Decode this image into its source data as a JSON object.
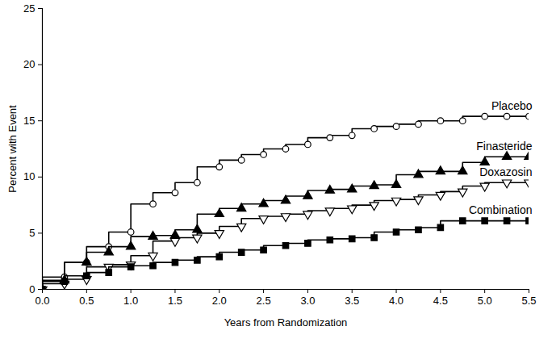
{
  "chart_data": {
    "type": "line",
    "x_label": "Years from Randomization",
    "y_label": "Percent with Event",
    "x": [
      0,
      0.25,
      0.5,
      0.75,
      1.0,
      1.25,
      1.5,
      1.75,
      2.0,
      2.25,
      2.5,
      2.75,
      3.0,
      3.25,
      3.5,
      3.75,
      4.0,
      4.25,
      4.5,
      4.75,
      5.0,
      5.25,
      5.5
    ],
    "series": [
      {
        "name": "Placebo",
        "color": "#000000",
        "marker": "circle-open",
        "line_style": "step",
        "values": [
          0,
          1.1,
          2.4,
          3.8,
          5.1,
          7.6,
          8.6,
          9.5,
          10.9,
          11.5,
          12.0,
          12.5,
          12.9,
          13.5,
          13.7,
          14.3,
          14.5,
          14.7,
          15.0,
          15.0,
          15.4,
          15.4,
          15.4
        ]
      },
      {
        "name": "Finasteride",
        "color": "#000000",
        "marker": "triangle",
        "line_style": "step",
        "values": [
          0,
          0.8,
          2.4,
          3.3,
          3.8,
          4.7,
          4.8,
          5.3,
          6.7,
          7.2,
          7.6,
          7.9,
          8.3,
          8.8,
          8.9,
          9.2,
          9.3,
          10.2,
          10.5,
          10.5,
          11.3,
          11.8,
          11.8
        ]
      },
      {
        "name": "Doxazosin",
        "color": "#000000",
        "marker": "triangle-down-open",
        "line_style": "step",
        "values": [
          0,
          0.5,
          0.9,
          2.0,
          2.2,
          3.0,
          4.3,
          4.6,
          5.0,
          5.6,
          6.3,
          6.5,
          6.7,
          7.0,
          7.2,
          7.5,
          7.9,
          8.0,
          8.4,
          8.7,
          9.2,
          9.5,
          9.5
        ]
      },
      {
        "name": "Combination",
        "color": "#000000",
        "marker": "square",
        "line_style": "step",
        "values": [
          0,
          0.7,
          1.2,
          1.5,
          2.0,
          2.1,
          2.4,
          2.6,
          2.9,
          3.3,
          3.5,
          3.9,
          4.1,
          4.4,
          4.5,
          4.6,
          5.1,
          5.3,
          5.5,
          6.1,
          6.1,
          6.1,
          6.1
        ]
      }
    ],
    "xlim": [
      0,
      5.5
    ],
    "xticks": [
      {
        "value": 0,
        "label": "0.0"
      },
      0.5,
      {
        "value": 1,
        "label": "1.0"
      },
      1.5,
      {
        "value": 2,
        "label": "2.0"
      },
      2.5,
      {
        "value": 3,
        "label": "3.0"
      },
      3.5,
      {
        "value": 4,
        "label": "4.0"
      },
      4.5,
      {
        "value": 5,
        "label": "5.0"
      },
      5.5
    ],
    "ylim": [
      0,
      25
    ],
    "yticks": [
      0,
      5,
      10,
      15,
      20,
      25
    ],
    "grid": false
  }
}
